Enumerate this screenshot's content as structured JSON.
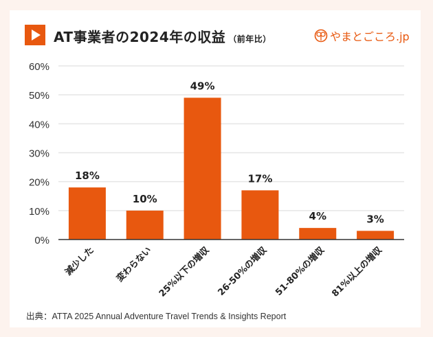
{
  "header": {
    "title": "AT事業者の2024年の収益",
    "subtitle": "（前年比）",
    "logo_text": "やまとごころ.jp"
  },
  "source": "出典：ATTA 2025 Annual Adventure Travel Trends & Insights Report",
  "colors": {
    "bar": "#e8580f",
    "background": "#fdf3ee",
    "grid": "#e5e5e5"
  },
  "chart_data": {
    "type": "bar",
    "title": "AT事業者の2024年の収益（前年比）",
    "categories": [
      "減少した",
      "変わらない",
      "25%以下の増収",
      "26-50%の増収",
      "51-80%の増収",
      "81%以上の増収"
    ],
    "values": [
      18,
      10,
      49,
      17,
      4,
      3
    ],
    "data_labels": [
      "18%",
      "10%",
      "49%",
      "17%",
      "4%",
      "3%"
    ],
    "yticks": [
      "0%",
      "10%",
      "20%",
      "30%",
      "40%",
      "50%",
      "60%"
    ],
    "ylim": [
      0,
      60
    ],
    "xlabel": "",
    "ylabel": "",
    "grid": true
  }
}
